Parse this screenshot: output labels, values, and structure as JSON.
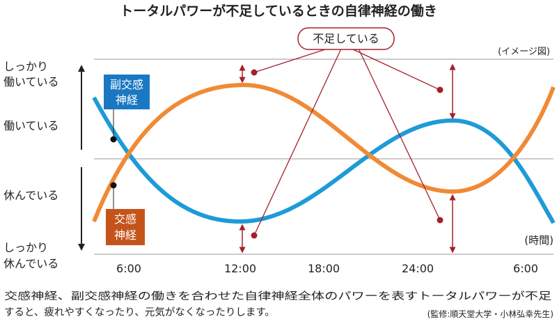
{
  "title": "トータルパワーが不足しているときの自律神経の働き",
  "callout": "不足している",
  "note": "(イメージ図)",
  "time_unit": "(時間)",
  "levels": [
    [
      "しっかり",
      "働いている"
    ],
    [
      "働いている"
    ],
    [
      "休んでいる"
    ],
    [
      "しっかり",
      "休んでいる"
    ]
  ],
  "parasympathetic": [
    "副交感",
    "神経"
  ],
  "sympathetic": [
    "交感",
    "神経"
  ],
  "time_labels": [
    "6:00",
    "12:00",
    "18:00",
    "24:00",
    "6:00"
  ],
  "caption": [
    "交感神経、副交感神経の働きを合わせた自律神経全体のパワーを表すトータルパワーが不足",
    "すると、疲れやすくなったり、元気がなくなったりします。"
  ],
  "credit": "(監修:順天堂大学・小林弘幸先生)"
}
